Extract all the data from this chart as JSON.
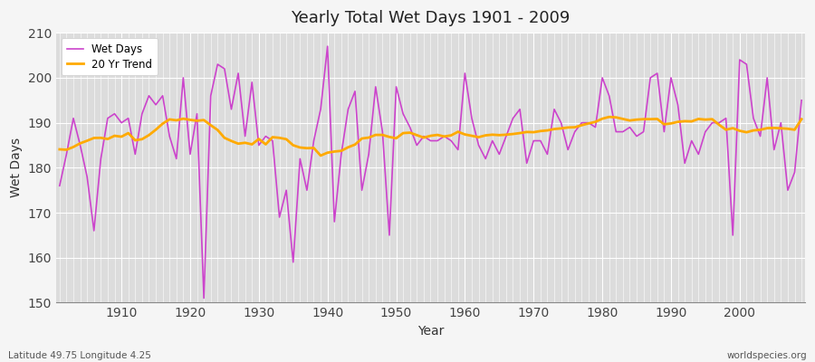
{
  "title": "Yearly Total Wet Days 1901 - 2009",
  "xlabel": "Year",
  "ylabel": "Wet Days",
  "lat_lon_label": "Latitude 49.75 Longitude 4.25",
  "watermark": "worldspecies.org",
  "ylim": [
    150,
    210
  ],
  "yticks": [
    150,
    160,
    170,
    180,
    190,
    200,
    210
  ],
  "line_color": "#cc44cc",
  "trend_color": "#ffaa00",
  "plot_bg_color": "#dcdcdc",
  "fig_bg_color": "#f5f5f5",
  "years": [
    1901,
    1902,
    1903,
    1904,
    1905,
    1906,
    1907,
    1908,
    1909,
    1910,
    1911,
    1912,
    1913,
    1914,
    1915,
    1916,
    1917,
    1918,
    1919,
    1920,
    1921,
    1922,
    1923,
    1924,
    1925,
    1926,
    1927,
    1928,
    1929,
    1930,
    1931,
    1932,
    1933,
    1934,
    1935,
    1936,
    1937,
    1938,
    1939,
    1940,
    1941,
    1942,
    1943,
    1944,
    1945,
    1946,
    1947,
    1948,
    1949,
    1950,
    1951,
    1952,
    1953,
    1954,
    1955,
    1956,
    1957,
    1958,
    1959,
    1960,
    1961,
    1962,
    1963,
    1964,
    1965,
    1966,
    1967,
    1968,
    1969,
    1970,
    1971,
    1972,
    1973,
    1974,
    1975,
    1976,
    1977,
    1978,
    1979,
    1980,
    1981,
    1982,
    1983,
    1984,
    1985,
    1986,
    1987,
    1988,
    1989,
    1990,
    1991,
    1992,
    1993,
    1994,
    1995,
    1996,
    1997,
    1998,
    1999,
    2000,
    2001,
    2002,
    2003,
    2004,
    2005,
    2006,
    2007,
    2008,
    2009
  ],
  "wet_days": [
    176,
    183,
    191,
    185,
    178,
    166,
    182,
    191,
    192,
    190,
    191,
    183,
    192,
    196,
    194,
    196,
    187,
    182,
    200,
    183,
    192,
    151,
    196,
    203,
    202,
    193,
    201,
    187,
    199,
    185,
    187,
    186,
    169,
    175,
    159,
    182,
    175,
    186,
    193,
    207,
    168,
    183,
    193,
    197,
    175,
    183,
    198,
    188,
    165,
    198,
    192,
    189,
    185,
    187,
    186,
    186,
    187,
    186,
    184,
    201,
    191,
    185,
    182,
    186,
    183,
    187,
    191,
    193,
    181,
    186,
    186,
    183,
    193,
    190,
    184,
    188,
    190,
    190,
    189,
    200,
    196,
    188,
    188,
    189,
    187,
    188,
    200,
    201,
    188,
    200,
    194,
    181,
    186,
    183,
    188,
    190,
    190,
    191,
    165,
    204,
    203,
    191,
    187,
    200,
    184,
    190,
    175,
    179,
    195
  ]
}
